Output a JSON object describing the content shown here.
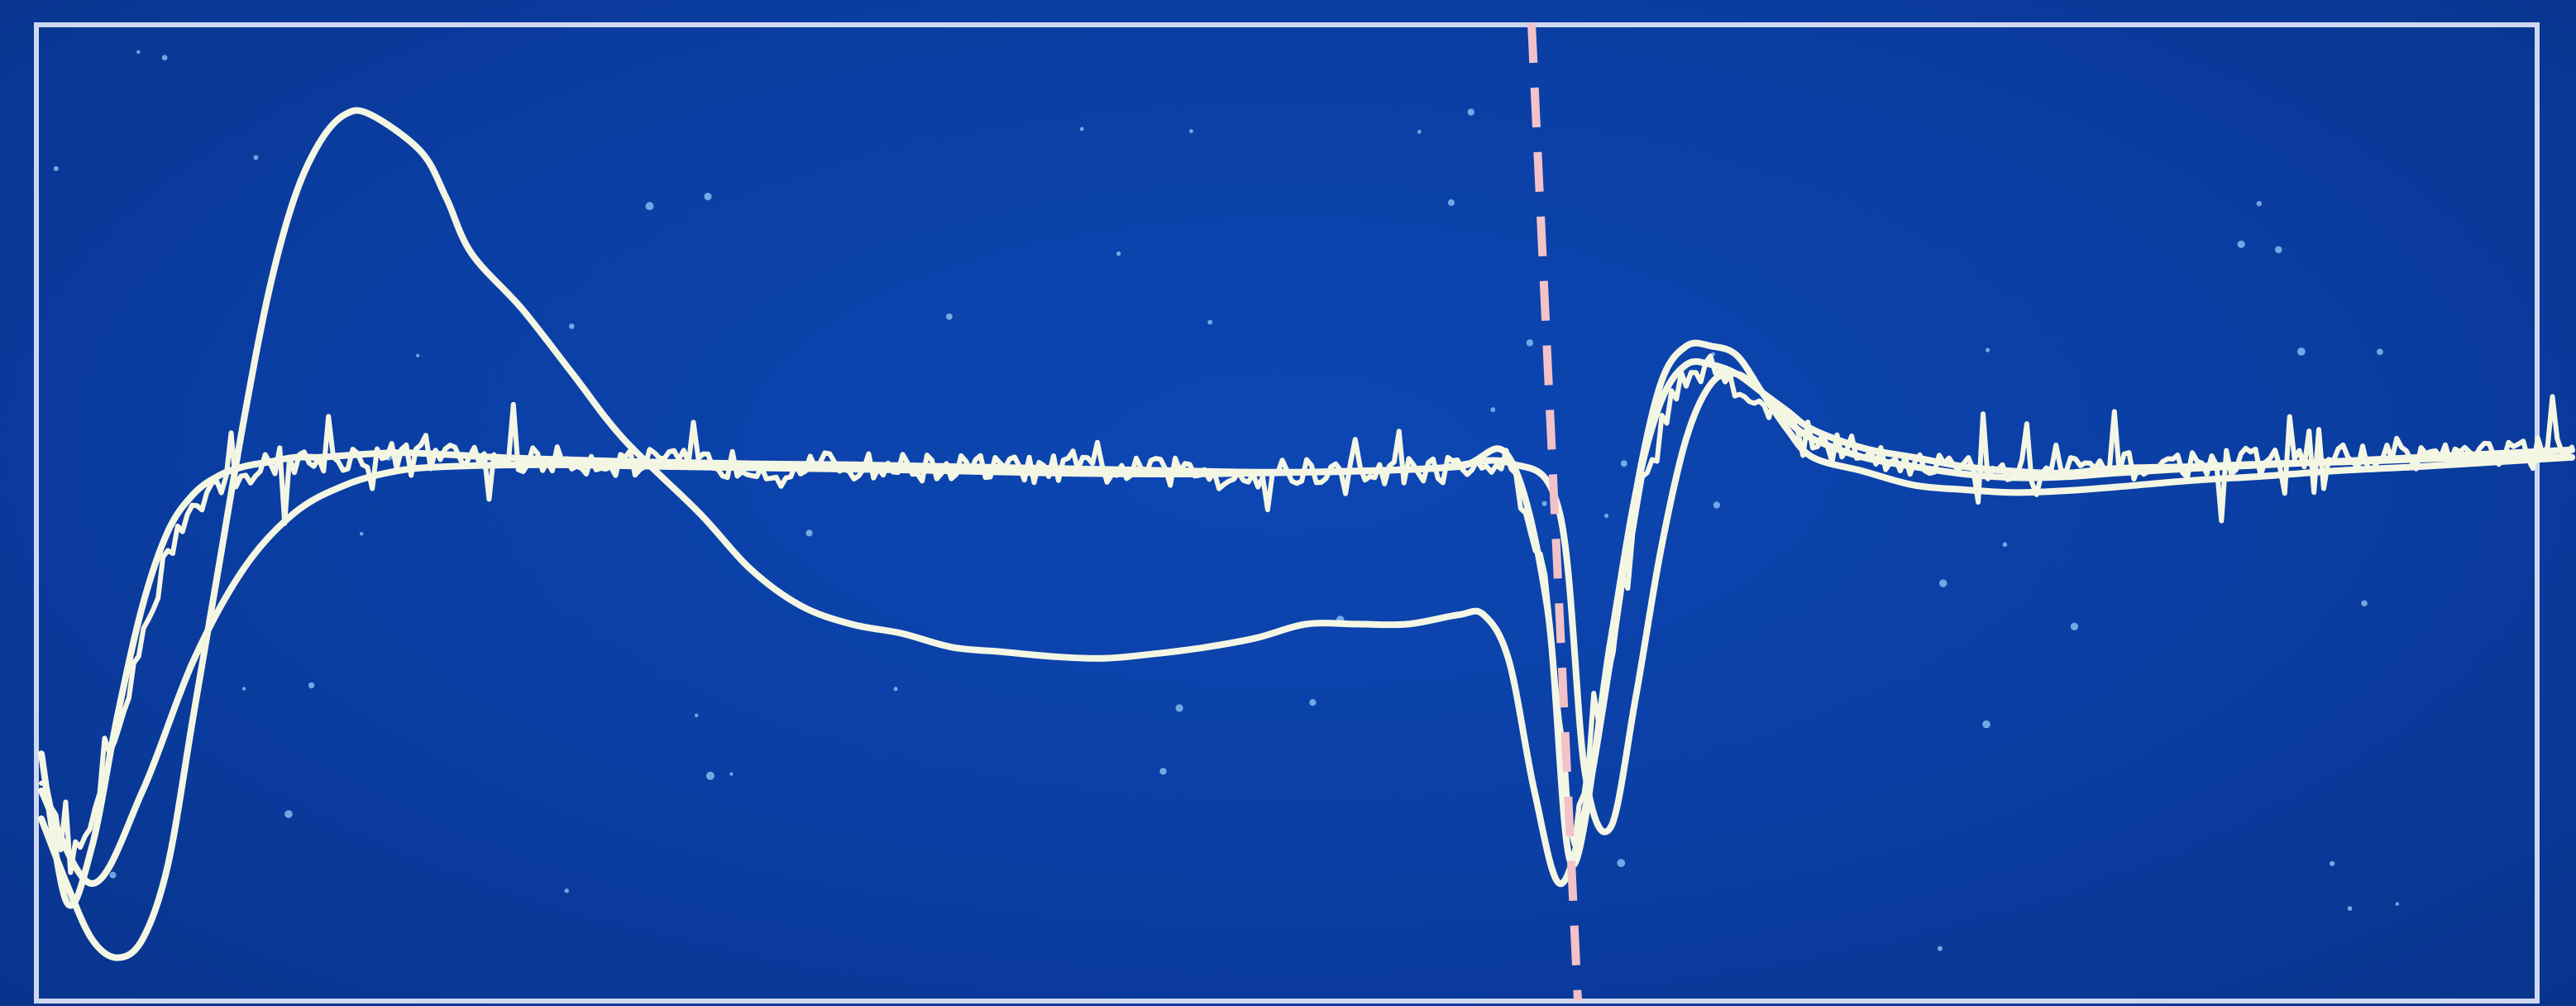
{
  "colors": {
    "background": "#0b3a9a",
    "trace": "#f4f6e4",
    "cursor": "#f2c2c8",
    "frame": "#cfd8f0"
  },
  "chart_data": {
    "type": "line",
    "title": "",
    "xlabel": "",
    "ylabel": "",
    "xlim": [
      0,
      100
    ],
    "ylim": [
      0,
      100
    ],
    "grid": false,
    "legend": "none",
    "cursor_x": 60,
    "series": [
      {
        "smooth": true,
        "noise": 0,
        "x": [
          0,
          1,
          2,
          3,
          4,
          5,
          6,
          7,
          8,
          9,
          10,
          11,
          12,
          13,
          15,
          16,
          17,
          19,
          21,
          23,
          26,
          28,
          30,
          32,
          34,
          36,
          38,
          40,
          42,
          44,
          46,
          48,
          50,
          52,
          54,
          56,
          57,
          58,
          59,
          60,
          61,
          62,
          63,
          64,
          65,
          66,
          67,
          68,
          69,
          70,
          72,
          74,
          76,
          78,
          80,
          82,
          85,
          88,
          91,
          94,
          97,
          100
        ],
        "y": [
          17,
          10,
          4,
          2,
          4,
          12,
          28,
          44,
          60,
          74,
          84,
          90,
          93,
          93,
          89,
          84,
          78,
          72,
          65,
          58,
          50,
          44,
          40,
          38,
          37,
          35.5,
          35,
          34.5,
          34.3,
          34.8,
          35.5,
          36.5,
          38,
          38,
          38,
          39,
          39,
          34,
          20,
          10,
          18,
          34,
          52,
          64,
          68,
          68,
          67,
          63,
          59,
          56,
          54.5,
          53,
          52.5,
          52.2,
          52.4,
          52.8,
          53.5,
          54,
          54.6,
          55,
          55.5,
          56
        ]
      },
      {
        "smooth": true,
        "noise": 0,
        "x": [
          0,
          1,
          2,
          3,
          4,
          5,
          6,
          7,
          8,
          9,
          10,
          11,
          12,
          14,
          16,
          18,
          20,
          24,
          28,
          32,
          36,
          40,
          44,
          48,
          52,
          56,
          58,
          59.5,
          60.5,
          62,
          63,
          64,
          65,
          66,
          67,
          68,
          69,
          70,
          72,
          74,
          76,
          78,
          80,
          82,
          85,
          88,
          91,
          94,
          97,
          100
        ],
        "y": [
          24,
          8,
          14,
          28,
          40,
          48,
          52,
          54,
          55,
          55.5,
          56,
          56,
          56.2,
          56.5,
          56.3,
          56,
          55.8,
          55.5,
          55.3,
          55.2,
          55,
          54.8,
          54.6,
          54.4,
          54.5,
          55,
          56,
          40,
          12,
          36,
          52,
          62,
          66,
          66,
          65,
          63,
          61,
          59,
          57,
          56,
          55,
          54.5,
          54.3,
          54.8,
          55,
          55.3,
          55.5,
          55.8,
          56,
          56
        ]
      },
      {
        "smooth": false,
        "noise": 5,
        "x": [
          0,
          1,
          2,
          3,
          4,
          5,
          6,
          7,
          8,
          9,
          10,
          11,
          12,
          14,
          16,
          18,
          20,
          24,
          28,
          32,
          36,
          40,
          44,
          48,
          52,
          56,
          58,
          59.5,
          60.5,
          62,
          63,
          64,
          65,
          66,
          67,
          68,
          69,
          70,
          72,
          74,
          76,
          78,
          80,
          82,
          85,
          88,
          91,
          94,
          97,
          100
        ],
        "y": [
          22,
          12,
          16,
          26,
          36,
          46,
          51,
          53,
          54.5,
          55,
          55.5,
          55.8,
          56,
          56.2,
          56,
          55.9,
          55.7,
          55.4,
          55.2,
          55,
          54.9,
          54.7,
          54.5,
          54.3,
          54.4,
          54.8,
          55.6,
          42,
          14,
          34,
          50,
          60,
          65,
          65.5,
          64,
          62,
          60,
          58,
          56.5,
          55.5,
          54.8,
          54.4,
          54.6,
          55,
          55.3,
          55.6,
          56,
          56.2,
          56.5,
          56.8
        ]
      },
      {
        "smooth": true,
        "noise": 0,
        "x": [
          0,
          2,
          4,
          6,
          8,
          10,
          12,
          14,
          16,
          20,
          25,
          30,
          35,
          40,
          45,
          50,
          55,
          58,
          60,
          61,
          62,
          63,
          64,
          65,
          66,
          67,
          68,
          69,
          70,
          72,
          74,
          76,
          78,
          80,
          82,
          85,
          88,
          91,
          94,
          97,
          100
        ],
        "y": [
          20,
          10,
          20,
          34,
          44,
          50,
          53,
          54.5,
          55,
          55.2,
          55,
          54.8,
          54.6,
          54.3,
          54.2,
          54.4,
          54.8,
          55.4,
          50,
          22,
          16,
          30,
          46,
          58,
          64,
          65,
          63,
          60,
          58,
          56,
          55,
          54.2,
          53.8,
          53.9,
          54.3,
          54.8,
          55.2,
          55.6,
          56,
          56.4,
          56.8
        ]
      }
    ]
  }
}
